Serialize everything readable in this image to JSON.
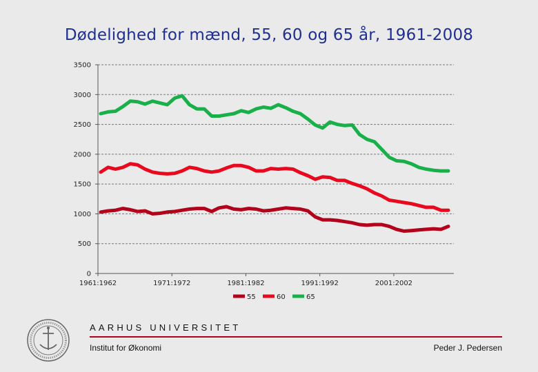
{
  "chart_data": {
    "type": "line",
    "title": "Dødelighed for mænd, 55, 60 og 65 år, 1961-2008",
    "xlabel": "",
    "ylabel": "",
    "ylim": [
      0,
      3500
    ],
    "yticks": [
      0,
      500,
      1000,
      1500,
      2000,
      2500,
      3000,
      3500
    ],
    "xtick_labels": [
      {
        "index": 0,
        "label": "1961:1962"
      },
      {
        "index": 10,
        "label": "1971:1972"
      },
      {
        "index": 20,
        "label": "1981:1982"
      },
      {
        "index": 30,
        "label": "1991:1992"
      },
      {
        "index": 40,
        "label": "2001:2002"
      }
    ],
    "grid": true,
    "legend_position": "bottom-center",
    "series": [
      {
        "name": "55",
        "color": "#b3001b",
        "values": [
          1030,
          1050,
          1060,
          1090,
          1070,
          1040,
          1050,
          1000,
          1010,
          1030,
          1040,
          1060,
          1080,
          1090,
          1090,
          1040,
          1100,
          1120,
          1080,
          1070,
          1090,
          1080,
          1050,
          1060,
          1080,
          1100,
          1090,
          1080,
          1050,
          950,
          900,
          900,
          890,
          870,
          850,
          820,
          810,
          820,
          820,
          790,
          740,
          710,
          720,
          730,
          740,
          750,
          740,
          790
        ]
      },
      {
        "name": "60",
        "color": "#e8091f",
        "values": [
          1700,
          1780,
          1750,
          1780,
          1840,
          1820,
          1750,
          1700,
          1680,
          1670,
          1680,
          1720,
          1780,
          1760,
          1720,
          1700,
          1720,
          1770,
          1810,
          1810,
          1780,
          1720,
          1720,
          1760,
          1750,
          1760,
          1750,
          1690,
          1640,
          1580,
          1620,
          1610,
          1560,
          1560,
          1510,
          1470,
          1420,
          1350,
          1300,
          1230,
          1210,
          1190,
          1170,
          1140,
          1110,
          1110,
          1060,
          1060
        ]
      },
      {
        "name": "65",
        "color": "#19b04a",
        "values": [
          2680,
          2710,
          2720,
          2800,
          2890,
          2880,
          2840,
          2890,
          2860,
          2830,
          2940,
          2980,
          2830,
          2760,
          2760,
          2640,
          2640,
          2660,
          2680,
          2730,
          2700,
          2760,
          2790,
          2770,
          2830,
          2780,
          2720,
          2680,
          2590,
          2490,
          2440,
          2540,
          2500,
          2480,
          2490,
          2330,
          2250,
          2210,
          2080,
          1950,
          1890,
          1880,
          1840,
          1780,
          1750,
          1730,
          1720,
          1720
        ]
      }
    ]
  },
  "footer": {
    "university": "AARHUS UNIVERSITET",
    "department": "Institut for Økonomi",
    "author": "Peder J. Pedersen"
  }
}
